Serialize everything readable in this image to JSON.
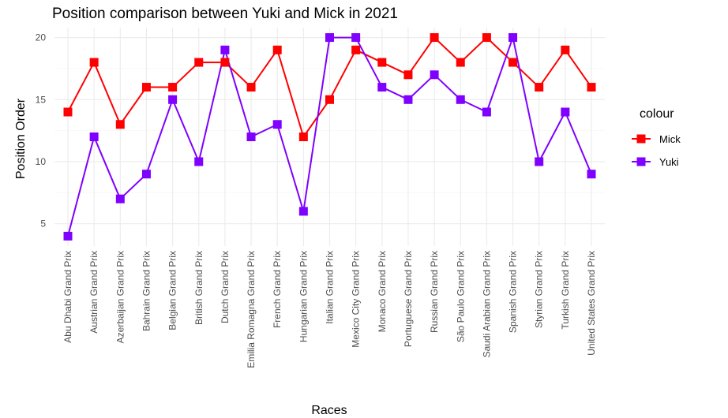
{
  "chart_data": {
    "type": "line",
    "title": "Position comparison between Yuki and Mick in 2021",
    "xlabel": "Races",
    "ylabel": "Position Order",
    "categories": [
      "Abu Dhabi Grand Prix",
      "Austrian Grand Prix",
      "Azerbaijan Grand Prix",
      "Bahrain Grand Prix",
      "Belgian Grand Prix",
      "British Grand Prix",
      "Dutch Grand Prix",
      "Emilia Romagna Grand Prix",
      "French Grand Prix",
      "Hungarian Grand Prix",
      "Italian Grand Prix",
      "Mexico City Grand Prix",
      "Monaco Grand Prix",
      "Portuguese Grand Prix",
      "Russian Grand Prix",
      "São Paulo Grand Prix",
      "Saudi Arabian Grand Prix",
      "Spanish Grand Prix",
      "Styrian Grand Prix",
      "Turkish Grand Prix",
      "United States Grand Prix"
    ],
    "series": [
      {
        "name": "Mick",
        "color": "#ff0000",
        "values": [
          14,
          18,
          13,
          16,
          16,
          18,
          18,
          16,
          19,
          12,
          15,
          19,
          18,
          17,
          20,
          18,
          20,
          18,
          16,
          19,
          16
        ]
      },
      {
        "name": "Yuki",
        "color": "#7f00ff",
        "values": [
          4,
          12,
          7,
          9,
          15,
          10,
          19,
          12,
          13,
          6,
          20,
          20,
          16,
          15,
          17,
          15,
          14,
          20,
          10,
          14,
          9
        ]
      }
    ],
    "yticks": [
      5,
      10,
      15,
      20
    ],
    "ylim": [
      3.2,
      20.8
    ],
    "grid": true,
    "legend": {
      "title": "colour",
      "position": "right"
    }
  }
}
